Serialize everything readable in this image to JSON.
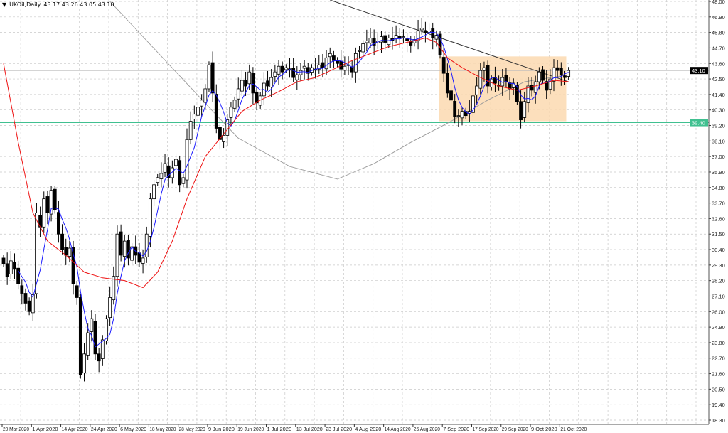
{
  "header": {
    "menu_icon": "triangle-down-icon",
    "symbol": "UKOil,Daily",
    "ohlc": "43.17 43.26 43.05 43.10"
  },
  "price_axis": {
    "labels": [
      "48.00",
      "46.90",
      "45.80",
      "44.70",
      "43.60",
      "42.50",
      "41.40",
      "40.30",
      "39.20",
      "38.10",
      "37.00",
      "35.90",
      "34.80",
      "33.70",
      "32.60",
      "31.50",
      "30.40",
      "29.30",
      "28.20",
      "27.10",
      "26.00",
      "24.90",
      "23.80",
      "22.70",
      "21.60",
      "20.50",
      "19.40",
      "18.30"
    ],
    "current_price": "43.10",
    "hline_price": "39.40"
  },
  "colors": {
    "bull": "#ffffff",
    "bear": "#000000",
    "fast_ma": "#1a1aff",
    "slow_ma": "#ee1111",
    "long_ma": "#999999",
    "hline": "#40c090",
    "range_box": "#fbd9b0",
    "trendline": "#333333",
    "grid": "#c8c8c8"
  },
  "chart_data": {
    "type": "candlestick",
    "title": "UKOil,Daily",
    "ylim": [
      18.3,
      48.0
    ],
    "x_labels": [
      {
        "bar": 0,
        "text": "20 Mar 2020"
      },
      {
        "bar": 8,
        "text": "1 Apr 2020"
      },
      {
        "bar": 16,
        "text": "14 Apr 2020"
      },
      {
        "bar": 24,
        "text": "24 Apr 2020"
      },
      {
        "bar": 32,
        "text": "6 May 2020"
      },
      {
        "bar": 40,
        "text": "18 May 2020"
      },
      {
        "bar": 48,
        "text": "28 May 2020"
      },
      {
        "bar": 56,
        "text": "9 Jun 2020"
      },
      {
        "bar": 64,
        "text": "19 Jun 2020"
      },
      {
        "bar": 72,
        "text": "1 Jul 2020"
      },
      {
        "bar": 80,
        "text": "13 Jul 2020"
      },
      {
        "bar": 88,
        "text": "23 Jul 2020"
      },
      {
        "bar": 96,
        "text": "4 Aug 2020"
      },
      {
        "bar": 104,
        "text": "14 Aug 2020"
      },
      {
        "bar": 112,
        "text": "26 Aug 2020"
      },
      {
        "bar": 120,
        "text": "7 Sep 2020"
      },
      {
        "bar": 128,
        "text": "17 Sep 2020"
      },
      {
        "bar": 136,
        "text": "29 Sep 2020"
      },
      {
        "bar": 144,
        "text": "9 Oct 2020"
      },
      {
        "bar": 152,
        "text": "21 Oct 2020"
      }
    ],
    "closes": [
      29.4,
      28.5,
      29.6,
      29.0,
      28.0,
      27.3,
      26.6,
      26.0,
      27.2,
      33.0,
      32.0,
      34.0,
      33.0,
      34.6,
      33.2,
      31.5,
      30.4,
      30.0,
      30.5,
      28.0,
      27.0,
      21.5,
      23.0,
      24.5,
      25.5,
      23.0,
      22.5,
      24.0,
      25.5,
      27.0,
      28.5,
      31.5,
      30.0,
      31.0,
      29.8,
      30.6,
      30.0,
      29.5,
      29.8,
      31.5,
      34.0,
      35.0,
      35.5,
      35.8,
      36.5,
      35.5,
      36.2,
      36.8,
      35.0,
      35.5,
      38.2,
      39.5,
      40.0,
      40.5,
      41.0,
      41.8,
      43.5,
      41.5,
      39.0,
      38.2,
      38.5,
      39.6,
      40.5,
      41.0,
      41.8,
      42.4,
      42.0,
      43.0,
      41.5,
      40.8,
      41.3,
      42.2,
      42.0,
      42.6,
      43.0,
      43.4,
      43.0,
      43.3,
      43.2,
      42.6,
      42.8,
      43.1,
      43.4,
      42.9,
      43.3,
      43.2,
      43.5,
      43.3,
      44.0,
      44.3,
      43.8,
      43.6,
      43.2,
      43.4,
      43.5,
      43.0,
      44.3,
      44.5,
      45.0,
      45.2,
      45.4,
      44.9,
      45.2,
      45.5,
      45.1,
      45.4,
      45.2,
      45.6,
      45.4,
      45.5,
      45.2,
      44.9,
      45.3,
      45.9,
      46.1,
      45.8,
      45.9,
      45.4,
      45.6,
      44.2,
      42.9,
      41.5,
      41.0,
      39.8,
      39.9,
      40.2,
      39.9,
      40.2,
      41.3,
      42.0,
      43.1,
      43.3,
      42.0,
      42.5,
      42.2,
      42.0,
      42.6,
      42.3,
      41.8,
      42.2,
      40.9,
      39.6,
      40.9,
      42.0,
      41.7,
      42.3,
      43.0,
      42.4,
      41.7,
      42.5,
      43.3,
      43.1,
      42.8,
      42.6,
      43.1
    ],
    "fast_ma_period": 5,
    "slow_ma": [
      [
        0,
        43.6
      ],
      [
        4,
        38
      ],
      [
        8,
        33
      ],
      [
        12,
        31
      ],
      [
        17,
        30
      ],
      [
        22,
        28.8
      ],
      [
        27,
        28.4
      ],
      [
        33,
        28.2
      ],
      [
        38,
        27.7
      ],
      [
        42,
        28.8
      ],
      [
        46,
        31
      ],
      [
        50,
        34
      ],
      [
        55,
        37
      ],
      [
        60,
        38.6
      ],
      [
        65,
        40.2
      ],
      [
        70,
        41.0
      ],
      [
        75,
        41.6
      ],
      [
        80,
        42.3
      ],
      [
        85,
        42.6
      ],
      [
        90,
        43.2
      ],
      [
        95,
        43.8
      ],
      [
        100,
        44.3
      ],
      [
        105,
        44.8
      ],
      [
        110,
        45.1
      ],
      [
        115,
        45.4
      ],
      [
        118,
        45.1
      ],
      [
        121,
        44.0
      ],
      [
        125,
        43.3
      ],
      [
        130,
        42.6
      ],
      [
        135,
        42.0
      ],
      [
        140,
        41.7
      ],
      [
        145,
        42.0
      ],
      [
        150,
        42.4
      ],
      [
        154,
        42.3
      ]
    ],
    "long_ma": [
      [
        29,
        48.0
      ],
      [
        56,
        40.5
      ],
      [
        64,
        38.3
      ],
      [
        78,
        36.3
      ],
      [
        91,
        35.4
      ],
      [
        101,
        36.5
      ],
      [
        111,
        38
      ],
      [
        122,
        39.5
      ],
      [
        132,
        41
      ],
      [
        142,
        42.3
      ],
      [
        154,
        42.8
      ]
    ],
    "trendline": [
      [
        89,
        48.1
      ],
      [
        154,
        42.3
      ]
    ],
    "range_box": {
      "from_bar": 119,
      "to_bar": 153,
      "top": 44.1,
      "bottom": 39.5
    }
  }
}
